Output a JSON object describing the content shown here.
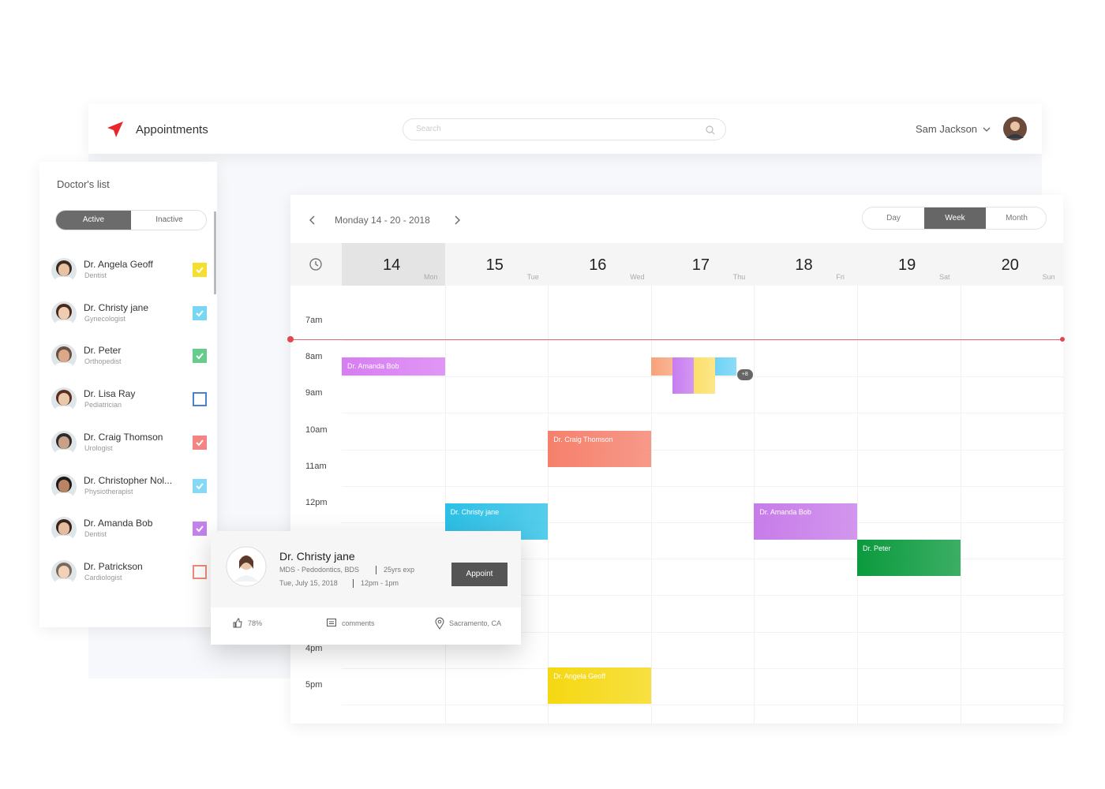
{
  "header": {
    "title": "Appointments",
    "search_placeholder": "Search",
    "user": "Sam Jackson"
  },
  "doctors_panel": {
    "title": "Doctor's list",
    "tabs": [
      "Active",
      "Inactive"
    ],
    "active_tab": 0,
    "doctors": [
      {
        "name": "Dr. Angela Geoff",
        "role": "Dentist",
        "color": "#f5d90a",
        "checked": true
      },
      {
        "name": "Dr. Christy jane",
        "role": "Gynecologist",
        "color": "#5fd0f3",
        "checked": true
      },
      {
        "name": "Dr. Peter",
        "role": "Orthopedist",
        "color": "#4cc27a",
        "checked": true
      },
      {
        "name": "Dr. Lisa Ray",
        "role": "Pediatrician",
        "color": "#4a7fd6",
        "checked": false
      },
      {
        "name": "Dr. Craig Thomson",
        "role": "Urologist",
        "color": "#f36f6f",
        "checked": true
      },
      {
        "name": "Dr. Christopher Nol...",
        "role": "Physiotherapist",
        "color": "#6fd3f5",
        "checked": true
      },
      {
        "name": "Dr. Amanda Bob",
        "role": "Dentist",
        "color": "#b86ee8",
        "checked": true
      },
      {
        "name": "Dr. Patrickson",
        "role": "Cardiologist",
        "color": "#f08a7a",
        "checked": false
      }
    ]
  },
  "calendar": {
    "range": "Monday 14 - 20 - 2018",
    "views": [
      "Day",
      "Week",
      "Month"
    ],
    "active_view": 1,
    "selected_day": 0,
    "days": [
      {
        "date": "14",
        "weekday": "Mon"
      },
      {
        "date": "15",
        "weekday": "Tue"
      },
      {
        "date": "16",
        "weekday": "Wed"
      },
      {
        "date": "17",
        "weekday": "Thu"
      },
      {
        "date": "18",
        "weekday": "Fri"
      },
      {
        "date": "19",
        "weekday": "Sat"
      },
      {
        "date": "20",
        "weekday": "Sun"
      }
    ],
    "times": [
      {
        "hour": 7,
        "label": "7am"
      },
      {
        "hour": 8,
        "label": "8am"
      },
      {
        "hour": 9,
        "label": "9am"
      },
      {
        "hour": 10,
        "label": "10am"
      },
      {
        "hour": 11,
        "label": "11am"
      },
      {
        "hour": 12,
        "label": "12pm"
      },
      {
        "hour": 16,
        "label": "4pm"
      },
      {
        "hour": 17,
        "label": "5pm"
      }
    ],
    "now": 7.5,
    "events": [
      {
        "label": "Dr. Amanda Bob",
        "day": 0,
        "start": 8,
        "end": 8.5,
        "color": "#d77df2"
      },
      {
        "day": 3,
        "start": 8,
        "end": 8.5,
        "color": "#f7a27a"
      },
      {
        "day": 3,
        "start": 8,
        "end": 9,
        "color": "#c77df0"
      },
      {
        "day": 3,
        "start": 8,
        "end": 9,
        "color": "#fbe06a"
      },
      {
        "day": 3,
        "start": 8,
        "end": 8.5,
        "color": "#6fd3f5"
      },
      {
        "label": "Dr. Craig Thomson",
        "day": 2,
        "start": 10,
        "end": 11,
        "color": "#f5806c"
      },
      {
        "label": "Dr. Christy jane",
        "day": 1,
        "start": 12,
        "end": 13,
        "color": "#2cc0e6"
      },
      {
        "label": "Dr. Amanda Bob",
        "day": 4,
        "start": 12,
        "end": 13,
        "color": "#c77ce9"
      },
      {
        "label": "Dr. Peter",
        "day": 5,
        "start": 13,
        "end": 14,
        "color": "#0b9a3e"
      },
      {
        "label": "Dr. Angela Geoff",
        "day": 2,
        "start": 16.5,
        "end": 17.5,
        "color": "#f5d812"
      }
    ],
    "more_badge": "+8"
  },
  "popup": {
    "name": "Dr. Christy jane",
    "qualification": "MDS - Pedodontics, BDS",
    "experience": "25yrs exp",
    "date": "Tue, July 15, 2018",
    "time": "12pm - 1pm",
    "button": "Appoint",
    "likes": "78%",
    "comments": "comments",
    "location": "Sacramento, CA"
  }
}
